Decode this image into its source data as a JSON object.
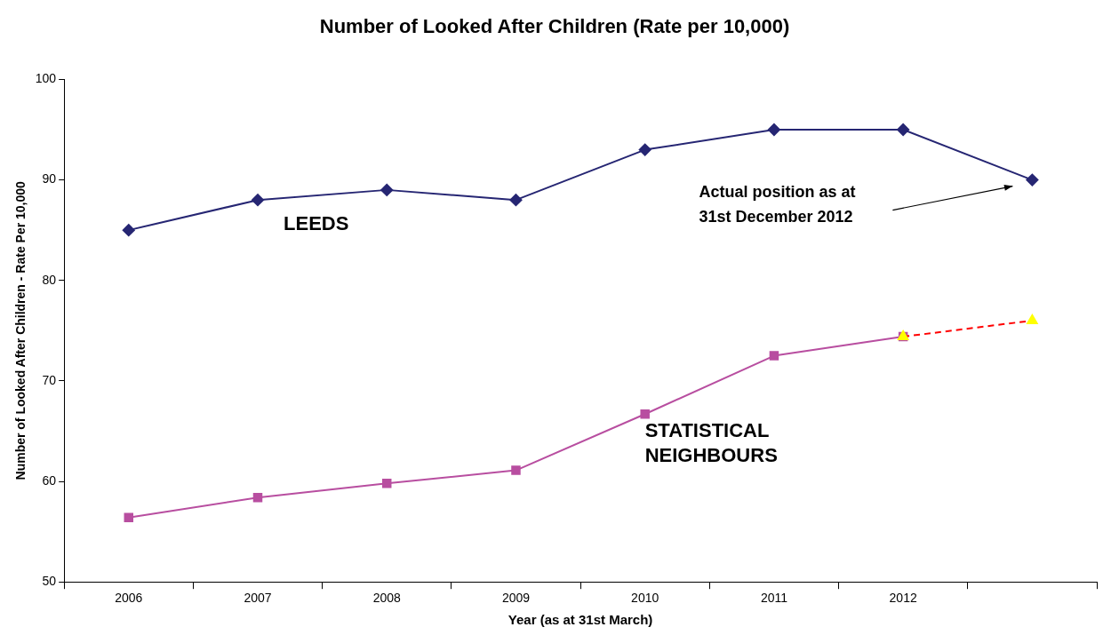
{
  "chart_data": {
    "type": "line",
    "title": "Number of Looked After Children (Rate per 10,000)",
    "xlabel": "Year (as at 31st March)",
    "ylabel": "Number of Looked After Children - Rate Per 10,000",
    "categories": [
      "2006",
      "2007",
      "2008",
      "2009",
      "2010",
      "2011",
      "2012",
      null
    ],
    "series": [
      {
        "name": "LEEDS",
        "color": "#262673",
        "marker": "diamond",
        "values": [
          85,
          88,
          89,
          88,
          93,
          95,
          95,
          90
        ]
      },
      {
        "name": "STATISTICAL NEIGHBOURS",
        "color": "#b84ea0",
        "marker": "square",
        "values": [
          56.4,
          58.4,
          59.8,
          61.1,
          66.7,
          72.5,
          74.4,
          null
        ]
      },
      {
        "color": "#ff0000",
        "colors": [
          null,
          null,
          null,
          null,
          null,
          null,
          "#ffff00",
          "#ffff00"
        ],
        "marker": "triangle",
        "line_style": "dashed",
        "values": [
          null,
          null,
          null,
          null,
          null,
          null,
          74.4,
          76
        ]
      }
    ],
    "ylim": [
      50,
      100
    ],
    "yticks": [
      50,
      60,
      70,
      80,
      90,
      100
    ],
    "grid": false,
    "legend": false,
    "annotations": [
      "Actual position as at 31st December 2012"
    ]
  }
}
